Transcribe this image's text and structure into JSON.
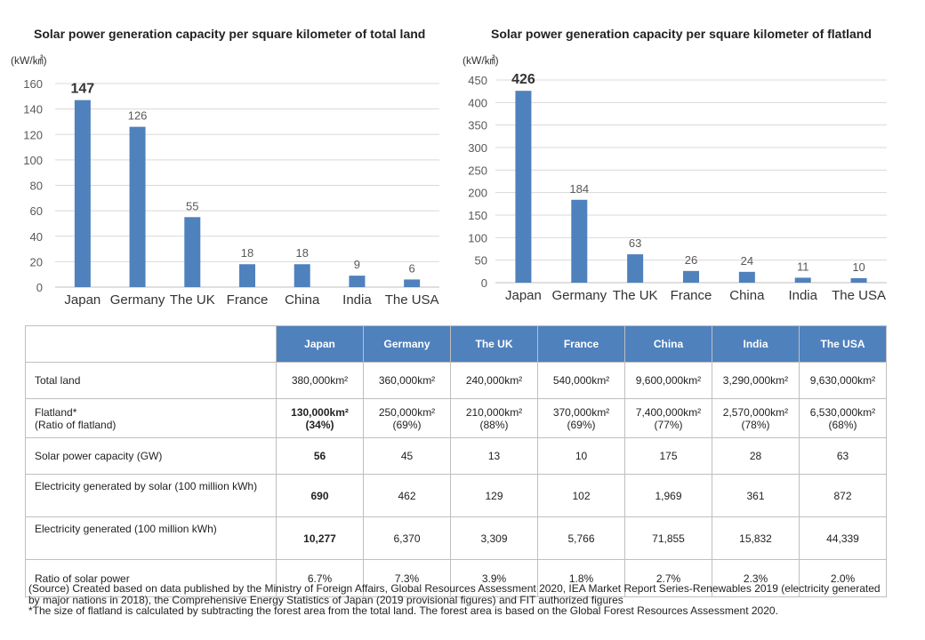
{
  "chart_data": [
    {
      "type": "bar",
      "title": "Solar power generation capacity per square kilometer of total land",
      "ylabel": "(kW/㎢)",
      "categories": [
        "Japan",
        "Germany",
        "The UK",
        "France",
        "China",
        "India",
        "The USA"
      ],
      "values": [
        147,
        126,
        55,
        18,
        18,
        9,
        6
      ],
      "data_labels": [
        "147",
        "126",
        "55",
        "18",
        "18",
        "9",
        "6"
      ],
      "ylim": [
        0,
        160
      ],
      "yticks": [
        "0",
        "20",
        "40",
        "60",
        "80",
        "100",
        "120",
        "140",
        "160"
      ],
      "grid": true,
      "color": "#4f81bd"
    },
    {
      "type": "bar",
      "title": "Solar power generation capacity per square kilometer of flatland",
      "ylabel": "(kW/㎢)",
      "categories": [
        "Japan",
        "Germany",
        "The UK",
        "France",
        "China",
        "India",
        "The USA"
      ],
      "values": [
        426,
        184,
        63,
        26,
        24,
        11,
        10
      ],
      "data_labels": [
        "426",
        "184",
        "63",
        "26",
        "24",
        "11",
        "10"
      ],
      "ylim": [
        0,
        450
      ],
      "yticks": [
        "0",
        "50",
        "100",
        "150",
        "200",
        "250",
        "300",
        "350",
        "400",
        "450"
      ],
      "grid": true,
      "color": "#4f81bd"
    }
  ],
  "table": {
    "headers": [
      "Japan",
      "Germany",
      "The UK",
      "France",
      "China",
      "India",
      "The USA"
    ],
    "rows": [
      {
        "label": "Total land",
        "label2": "",
        "cells": [
          {
            "l1": "380,000km²",
            "l2": ""
          },
          {
            "l1": "360,000km²",
            "l2": ""
          },
          {
            "l1": "240,000km²",
            "l2": ""
          },
          {
            "l1": "540,000km²",
            "l2": ""
          },
          {
            "l1": "9,600,000km²",
            "l2": ""
          },
          {
            "l1": "3,290,000km²",
            "l2": ""
          },
          {
            "l1": "9,630,000km²",
            "l2": ""
          }
        ]
      },
      {
        "label": "Flatland*",
        "label2": "(Ratio of flatland)",
        "cells": [
          {
            "l1": "130,000km²",
            "l2": "(34%)"
          },
          {
            "l1": "250,000km²",
            "l2": "(69%)"
          },
          {
            "l1": "210,000km²",
            "l2": "(88%)"
          },
          {
            "l1": "370,000km²",
            "l2": "(69%)"
          },
          {
            "l1": "7,400,000km²",
            "l2": "(77%)"
          },
          {
            "l1": "2,570,000km²",
            "l2": "(78%)"
          },
          {
            "l1": "6,530,000km²",
            "l2": "(68%)"
          }
        ]
      },
      {
        "label": "Solar power capacity (GW)",
        "label2": "",
        "cells": [
          {
            "l1": "56",
            "l2": ""
          },
          {
            "l1": "45",
            "l2": ""
          },
          {
            "l1": "13",
            "l2": ""
          },
          {
            "l1": "10",
            "l2": ""
          },
          {
            "l1": "175",
            "l2": ""
          },
          {
            "l1": "28",
            "l2": ""
          },
          {
            "l1": "63",
            "l2": ""
          }
        ]
      },
      {
        "label": "Electricity generated by solar (100 million kWh)",
        "label2": "",
        "cells": [
          {
            "l1": "690",
            "l2": ""
          },
          {
            "l1": "462",
            "l2": ""
          },
          {
            "l1": "129",
            "l2": ""
          },
          {
            "l1": "102",
            "l2": ""
          },
          {
            "l1": "1,969",
            "l2": ""
          },
          {
            "l1": "361",
            "l2": ""
          },
          {
            "l1": "872",
            "l2": ""
          }
        ]
      },
      {
        "label": "Electricity generated (100 million kWh)",
        "label2": "",
        "cells": [
          {
            "l1": "10,277",
            "l2": ""
          },
          {
            "l1": "6,370",
            "l2": ""
          },
          {
            "l1": "3,309",
            "l2": ""
          },
          {
            "l1": "5,766",
            "l2": ""
          },
          {
            "l1": "71,855",
            "l2": ""
          },
          {
            "l1": "15,832",
            "l2": ""
          },
          {
            "l1": "44,339",
            "l2": ""
          }
        ]
      },
      {
        "label": "Ratio of solar power",
        "label2": "",
        "cells": [
          {
            "l1": "6.7%",
            "l2": ""
          },
          {
            "l1": "7.3%",
            "l2": ""
          },
          {
            "l1": "3.9%",
            "l2": ""
          },
          {
            "l1": "1.8%",
            "l2": ""
          },
          {
            "l1": "2.7%",
            "l2": ""
          },
          {
            "l1": "2.3%",
            "l2": ""
          },
          {
            "l1": "2.0%",
            "l2": ""
          }
        ]
      }
    ]
  },
  "source": {
    "line1": "(Source) Created based on data published by the Ministry of Foreign Affairs, Global Resources Assessment 2020, IEA Market Report Series-Renewables 2019 (electricity generated by major nations in 2018), the Comprehensive Energy Statistics of Japan (2019 provisional figures) and FIT authorized figures",
    "line2": "*The size of flatland is calculated by subtracting the forest area from the total land. The forest area is based on the Global Forest Resources Assessment 2020."
  }
}
